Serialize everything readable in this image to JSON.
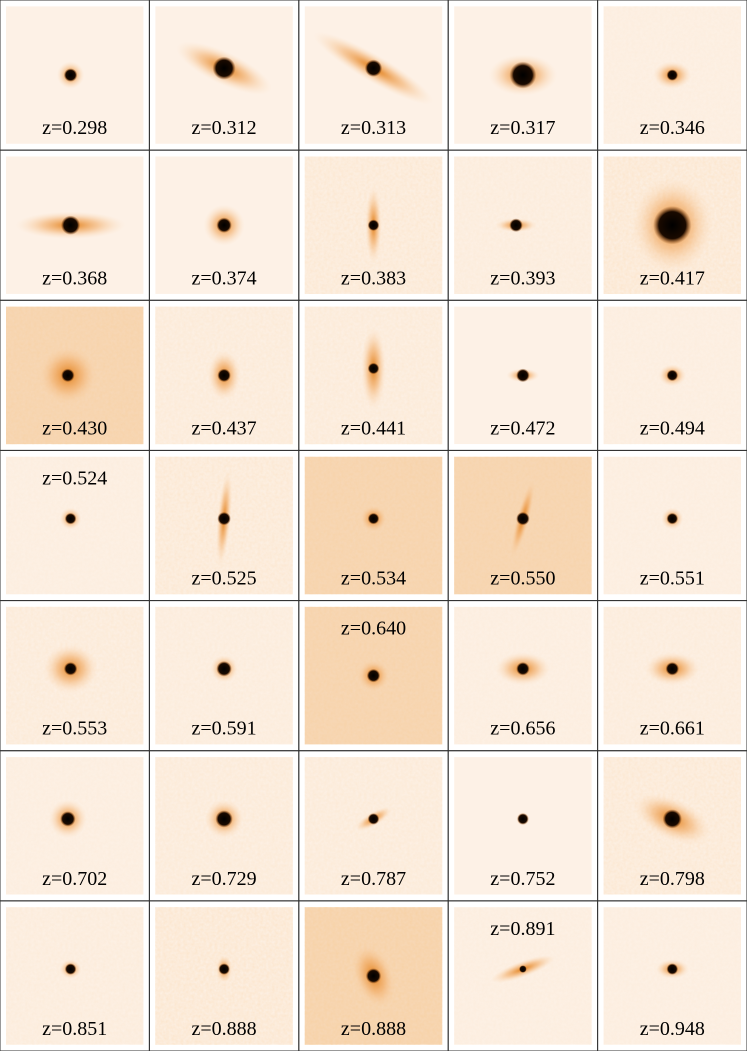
{
  "rows": [
    [
      "z=0.298",
      "z=0.312",
      "z=0.313",
      "z=0.317",
      "z=0.346"
    ],
    [
      "z=0.368",
      "z=0.374",
      "z=0.383",
      "z=0.393",
      "z=0.417"
    ],
    [
      "z=0.430",
      "z=0.437",
      "z=0.441",
      "z=0.472",
      "z=0.494"
    ],
    [
      "z=0.524",
      "z=0.525",
      "z=0.534",
      "z=0.550",
      "z=0.551"
    ],
    [
      "z=0.553",
      "z=0.591",
      "z=0.640",
      "z=0.656",
      "z=0.661"
    ],
    [
      "z=0.702",
      "z=0.729",
      "z=0.787",
      "z=0.752",
      "z=0.798"
    ],
    [
      "z=0.851",
      "z=0.888",
      "z=0.888",
      "z=0.891",
      "z=0.948"
    ]
  ]
}
